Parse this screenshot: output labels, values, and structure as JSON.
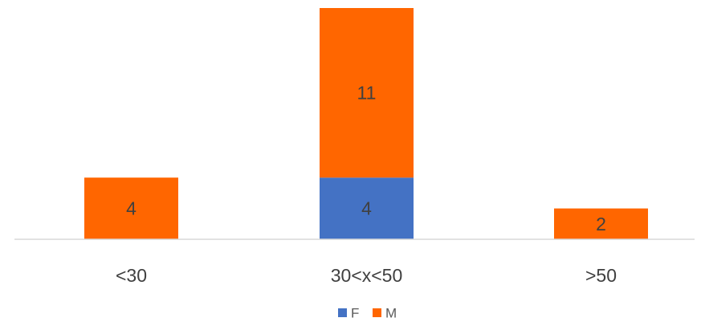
{
  "chart_data": {
    "type": "bar",
    "stacked": true,
    "categories": [
      "<30",
      "30<x<50",
      ">50"
    ],
    "series": [
      {
        "name": "F",
        "values": [
          0,
          4,
          0
        ],
        "color": "#4472C4"
      },
      {
        "name": "M",
        "values": [
          4,
          11,
          2
        ],
        "color": "#FF6600"
      }
    ],
    "ylim": [
      0,
      15
    ],
    "grid": false,
    "legend_position": "bottom",
    "data_labels": true
  }
}
